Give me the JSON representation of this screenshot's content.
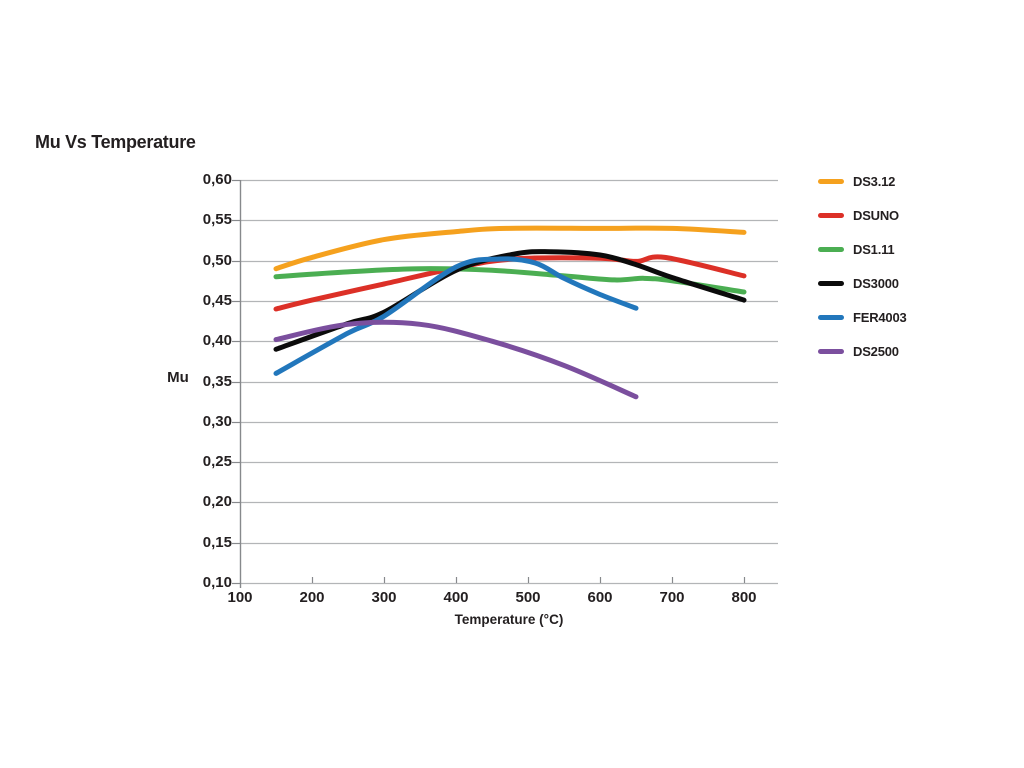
{
  "title": "Mu Vs Temperature",
  "colors": {
    "text": "#231f20",
    "grid": "#b3b5b7",
    "axis": "#87898c",
    "background": "#ffffff"
  },
  "chart_data": {
    "type": "line",
    "title": "Mu Vs Temperature",
    "xlabel": "Temperature (°C)",
    "ylabel": "Mu",
    "xlim": [
      100,
      845
    ],
    "ylim": [
      0.1,
      0.6
    ],
    "x_ticks": [
      100,
      200,
      300,
      400,
      500,
      600,
      700,
      800
    ],
    "y_ticks": [
      0.6,
      0.55,
      0.5,
      0.45,
      0.4,
      0.35,
      0.3,
      0.25,
      0.2,
      0.15,
      0.1
    ],
    "y_tick_labels": [
      "0,60",
      "0,55",
      "0,50",
      "0,45",
      "0,40",
      "0,35",
      "0,30",
      "0,25",
      "0,20",
      "0,15",
      "0,10"
    ],
    "decimal_separator": ",",
    "grid": "horizontal",
    "legend_position": "right",
    "series": [
      {
        "name": "DS3.12",
        "color": "#f5a11e",
        "points": [
          [
            150,
            0.49
          ],
          [
            200,
            0.504
          ],
          [
            300,
            0.526
          ],
          [
            400,
            0.536
          ],
          [
            470,
            0.54
          ],
          [
            600,
            0.54
          ],
          [
            700,
            0.54
          ],
          [
            800,
            0.535
          ]
        ]
      },
      {
        "name": "DSUNO",
        "color": "#dc3027",
        "points": [
          [
            150,
            0.44
          ],
          [
            200,
            0.451
          ],
          [
            300,
            0.471
          ],
          [
            400,
            0.491
          ],
          [
            480,
            0.502
          ],
          [
            600,
            0.503
          ],
          [
            650,
            0.499
          ],
          [
            690,
            0.504
          ],
          [
            800,
            0.481
          ]
        ]
      },
      {
        "name": "DS1.11",
        "color": "#4bae52",
        "points": [
          [
            150,
            0.48
          ],
          [
            250,
            0.486
          ],
          [
            350,
            0.49
          ],
          [
            450,
            0.488
          ],
          [
            550,
            0.481
          ],
          [
            620,
            0.476
          ],
          [
            660,
            0.478
          ],
          [
            700,
            0.475
          ],
          [
            800,
            0.461
          ]
        ]
      },
      {
        "name": "DS3000",
        "color": "#0b0b0b",
        "points": [
          [
            150,
            0.39
          ],
          [
            250,
            0.422
          ],
          [
            300,
            0.436
          ],
          [
            400,
            0.488
          ],
          [
            480,
            0.508
          ],
          [
            530,
            0.511
          ],
          [
            600,
            0.507
          ],
          [
            650,
            0.495
          ],
          [
            700,
            0.479
          ],
          [
            800,
            0.451
          ]
        ]
      },
      {
        "name": "FER4003",
        "color": "#2277bc",
        "points": [
          [
            150,
            0.36
          ],
          [
            250,
            0.41
          ],
          [
            300,
            0.431
          ],
          [
            400,
            0.492
          ],
          [
            460,
            0.502
          ],
          [
            510,
            0.497
          ],
          [
            550,
            0.478
          ],
          [
            600,
            0.458
          ],
          [
            650,
            0.441
          ]
        ]
      },
      {
        "name": "DS2500",
        "color": "#7b4f9e",
        "points": [
          [
            150,
            0.402
          ],
          [
            250,
            0.421
          ],
          [
            350,
            0.421
          ],
          [
            450,
            0.4
          ],
          [
            550,
            0.37
          ],
          [
            650,
            0.331
          ]
        ]
      }
    ]
  }
}
